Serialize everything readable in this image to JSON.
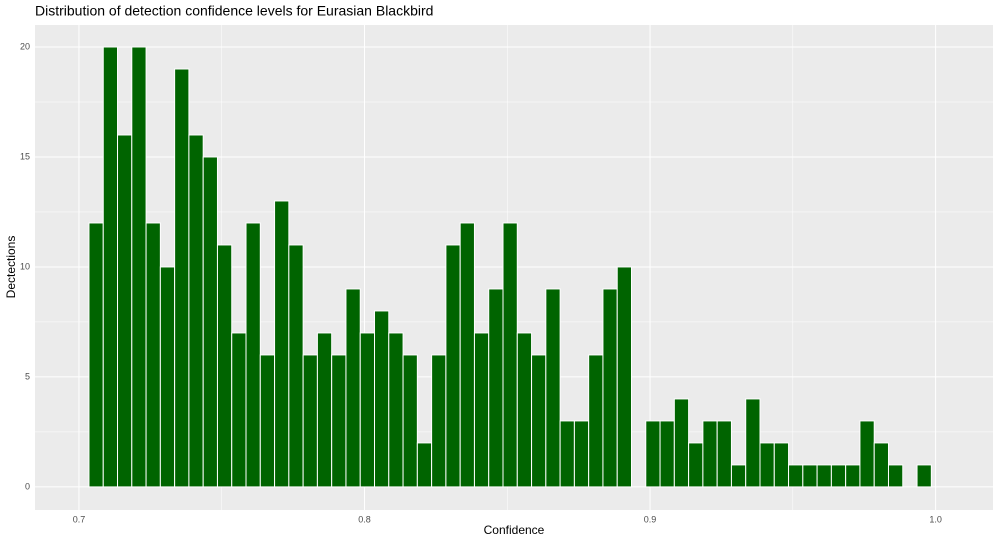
{
  "chart_data": {
    "type": "histogram",
    "title": "Distribution of detection confidence levels for Eurasian Blackbird",
    "x_label": "Confidence",
    "y_label": "Dectections",
    "bins": [
      0.7035,
      0.7085,
      0.7135,
      0.7185,
      0.7235,
      0.7285,
      0.7335,
      0.7385,
      0.7435,
      0.7485,
      0.7535,
      0.7585,
      0.7635,
      0.7685,
      0.7735,
      0.7785,
      0.7835,
      0.7885,
      0.7935,
      0.7985,
      0.8035,
      0.8085,
      0.8135,
      0.8185,
      0.8235,
      0.8285,
      0.8335,
      0.8385,
      0.8435,
      0.8485,
      0.8535,
      0.8585,
      0.8635,
      0.8685,
      0.8735,
      0.8785,
      0.8835,
      0.8885,
      0.8935,
      0.8985,
      0.9035,
      0.9085,
      0.9135,
      0.9185,
      0.9235,
      0.9285,
      0.9335,
      0.9385,
      0.9435,
      0.9485,
      0.9535,
      0.9585,
      0.9635,
      0.9685,
      0.9735,
      0.9785,
      0.9835,
      0.9885,
      0.9935,
      0.9985
    ],
    "values": [
      12,
      20,
      16,
      20,
      12,
      10,
      19,
      16,
      15,
      11,
      7,
      12,
      6,
      13,
      11,
      6,
      7,
      6,
      9,
      7,
      8,
      7,
      6,
      2,
      6,
      11,
      12,
      7,
      9,
      12,
      7,
      6,
      9,
      3,
      3,
      6,
      9,
      10,
      0,
      3,
      3,
      4,
      2,
      3,
      3,
      1,
      4,
      2,
      2,
      1,
      1,
      1,
      1,
      1,
      3,
      2,
      1,
      0,
      1
    ],
    "color": "#006400",
    "xlim": [
      0.6846,
      1.0201
    ],
    "xticks": [
      0.7,
      0.8,
      0.9,
      {
        "value": 1.0,
        "label": "1.0"
      }
    ],
    "ylim": [
      -1.05,
      21
    ],
    "yticks": [
      0,
      5,
      10,
      15,
      20
    ],
    "grid": true
  }
}
